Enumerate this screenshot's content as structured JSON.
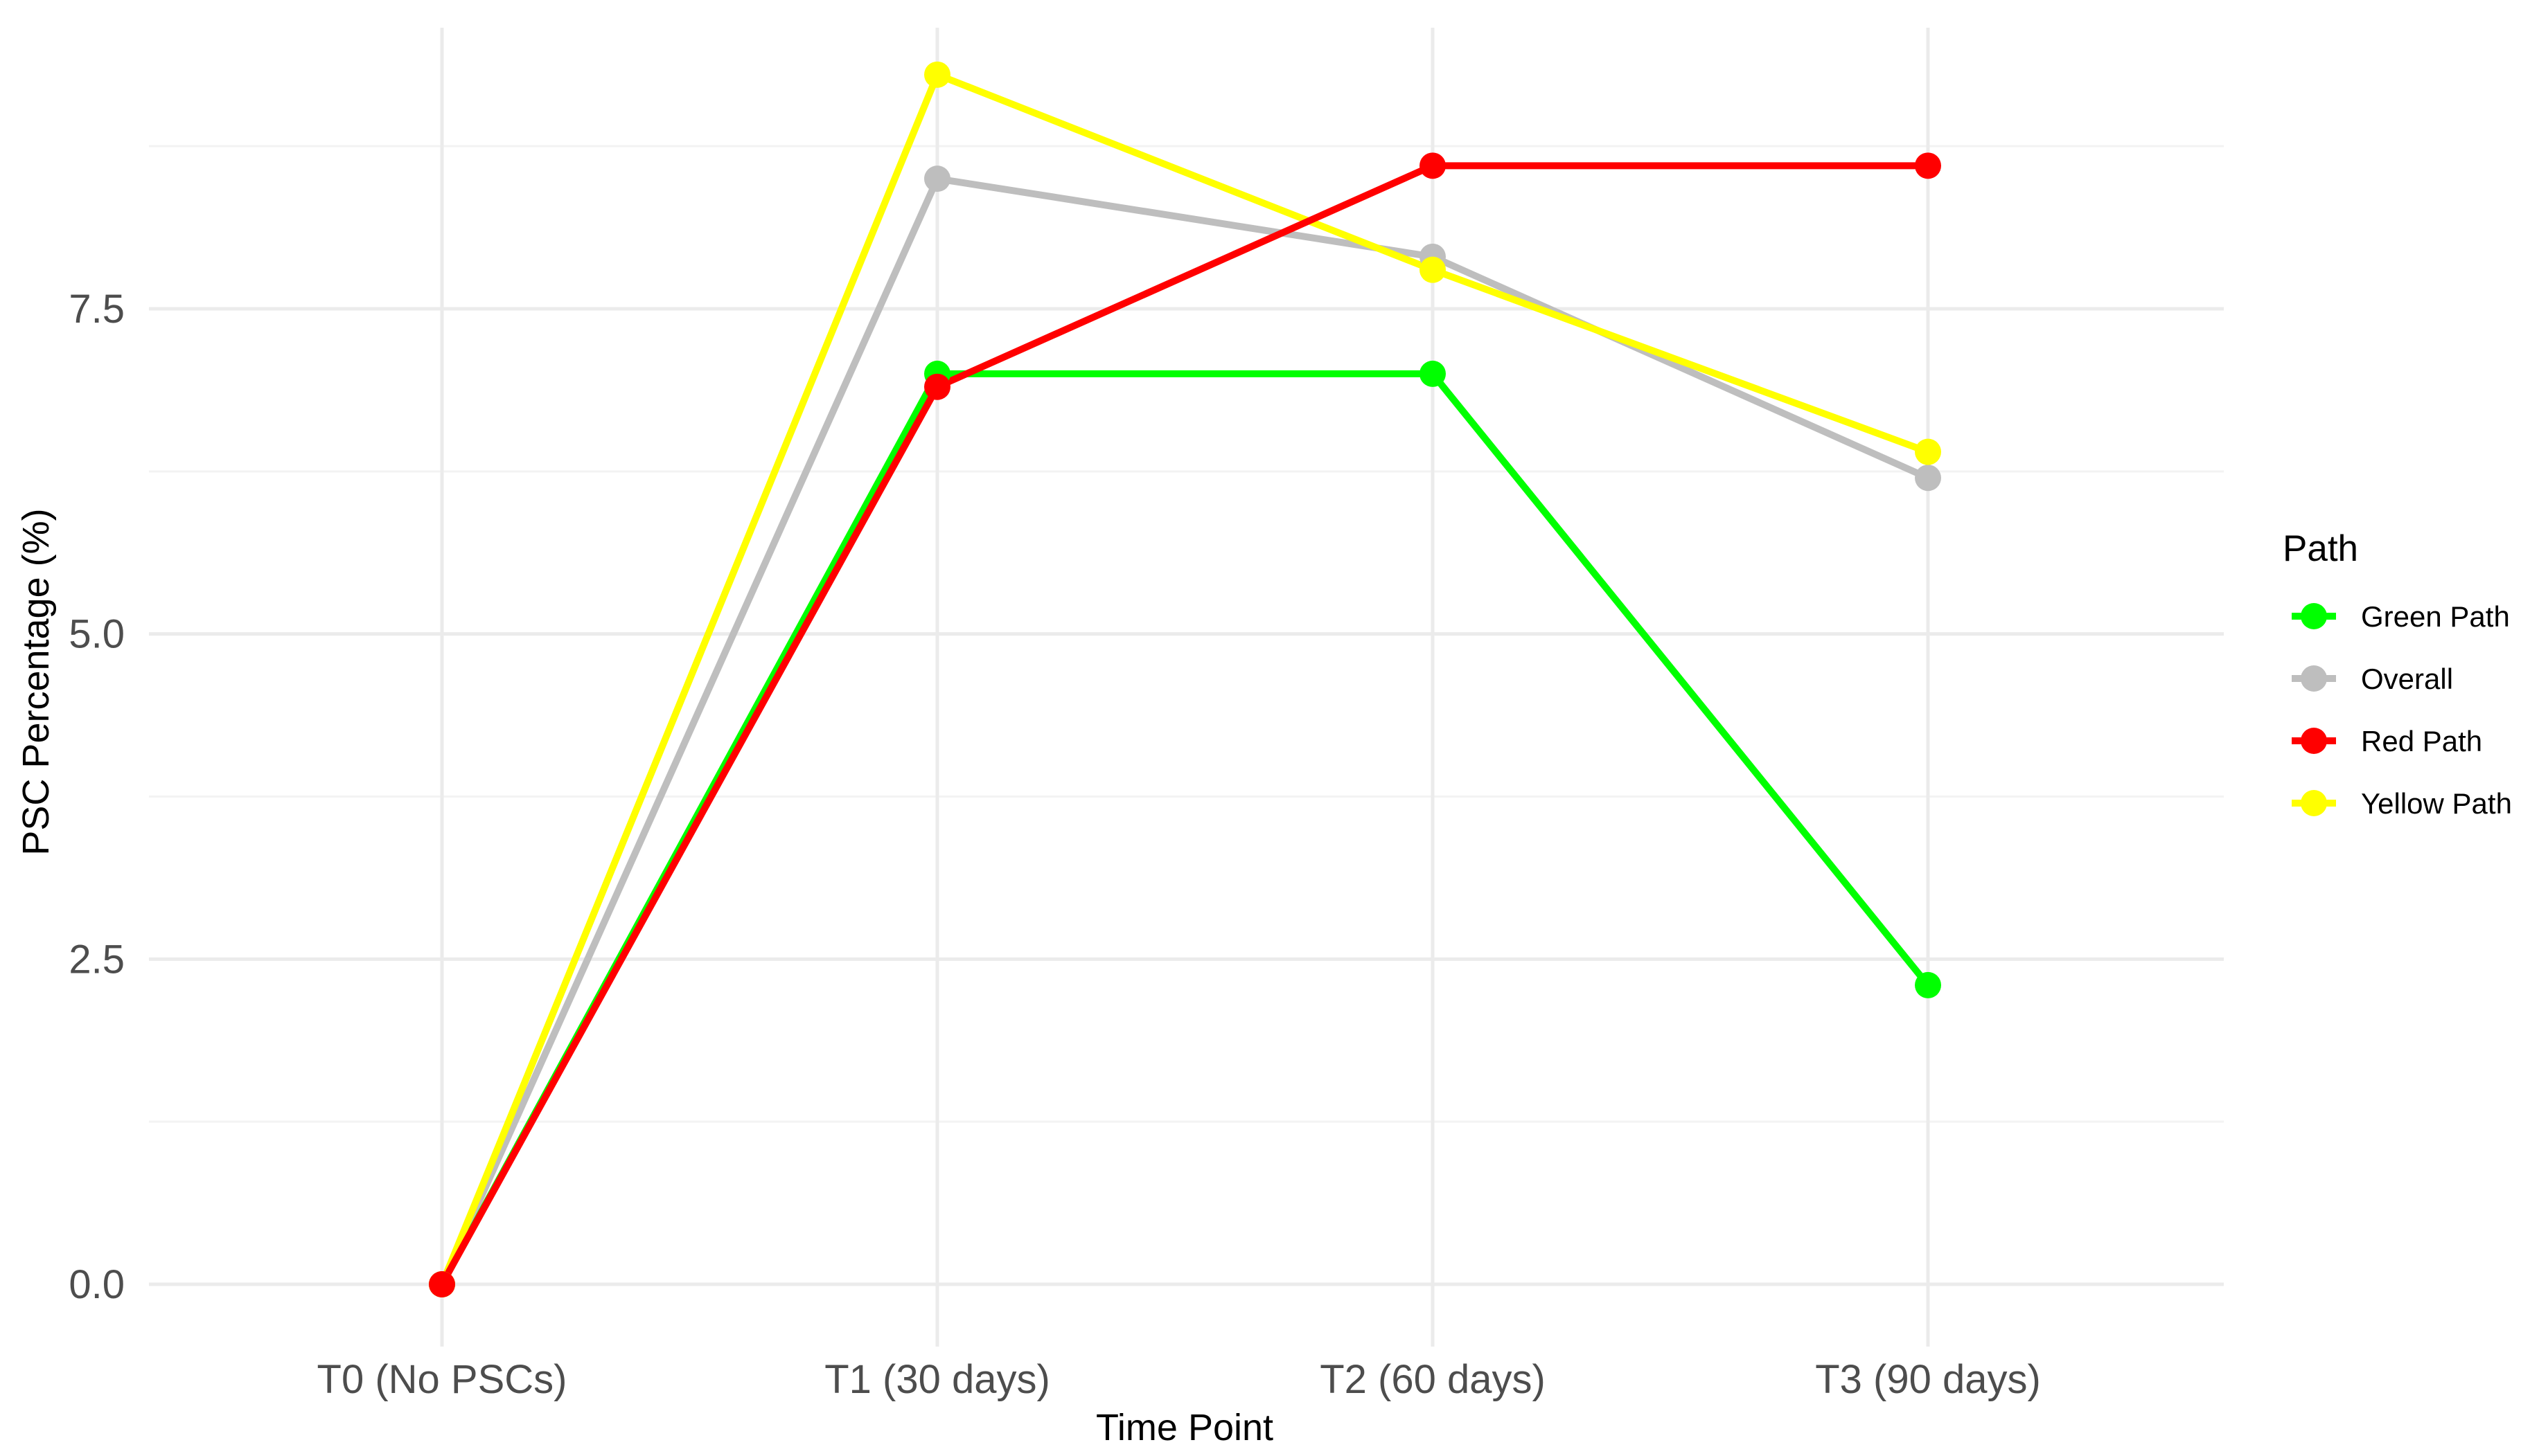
{
  "chart_data": {
    "type": "line",
    "title": "",
    "xlabel": "Time Point",
    "ylabel": "PSC Percentage (%)",
    "categories": [
      "T0 (No PSCs)",
      "T1 (30 days)",
      "T2 (60 days)",
      "T3 (90 days)"
    ],
    "ylim": [
      0,
      9.3
    ],
    "yticks": [
      0.0,
      2.5,
      5.0,
      7.5
    ],
    "ytick_labels": [
      "0.0",
      "2.5",
      "5.0",
      "7.5"
    ],
    "grid": true,
    "legend": {
      "title": "Path",
      "position": "right"
    },
    "series": [
      {
        "name": "Overall",
        "color": "#bebebe",
        "values": [
          0,
          8.5,
          7.9,
          6.2
        ]
      },
      {
        "name": "Green Path",
        "color": "#00ff00",
        "values": [
          0,
          7.0,
          7.0,
          2.3
        ]
      },
      {
        "name": "Yellow Path",
        "color": "#ffff00",
        "values": [
          0,
          9.3,
          7.8,
          6.4
        ]
      },
      {
        "name": "Red Path",
        "color": "#ff0000",
        "values": [
          0,
          6.9,
          8.6,
          8.6
        ]
      }
    ],
    "legend_order": [
      "Green Path",
      "Overall",
      "Red Path",
      "Yellow Path"
    ]
  }
}
